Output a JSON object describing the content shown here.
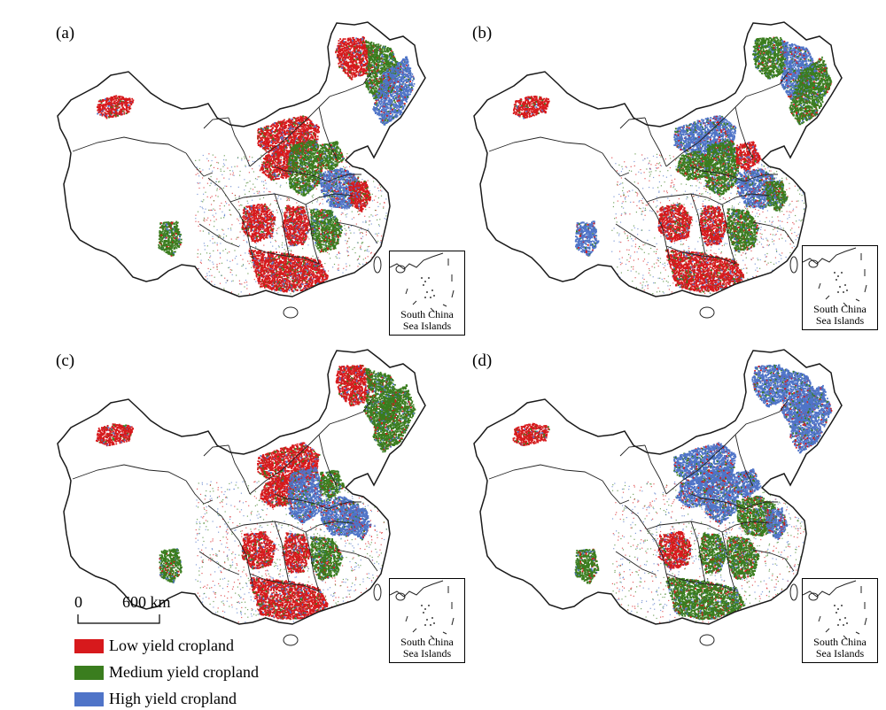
{
  "panels": [
    {
      "label": "(a)",
      "scheme": [
        "#d7191c",
        "#3a7d1e",
        "#4f74c8",
        "#d7191c",
        "#d7191c",
        "#3a7d1e",
        "#3a7d1e",
        "#4f74c8",
        "#d7191c",
        "#d7191c",
        "#3a7d1e",
        "#d7191c",
        "#d7191c",
        "#3a7d1e",
        "#d7191c"
      ]
    },
    {
      "label": "(b)",
      "scheme": [
        "#3a7d1e",
        "#4f74c8",
        "#3a7d1e",
        "#4f74c8",
        "#3a7d1e",
        "#3a7d1e",
        "#d7191c",
        "#4f74c8",
        "#3a7d1e",
        "#d7191c",
        "#3a7d1e",
        "#d7191c",
        "#d7191c",
        "#4f74c8",
        "#d7191c"
      ]
    },
    {
      "label": "(c)",
      "scheme": [
        "#d7191c",
        "#3a7d1e",
        "#3a7d1e",
        "#d7191c",
        "#d7191c",
        "#4f74c8",
        "#3a7d1e",
        "#4f74c8",
        "#4f74c8",
        "#d7191c",
        "#3a7d1e",
        "#d7191c",
        "#d7191c",
        "#3a7d1e",
        "#d7191c"
      ]
    },
    {
      "label": "(d)",
      "scheme": [
        "#4f74c8",
        "#4f74c8",
        "#4f74c8",
        "#4f74c8",
        "#4f74c8",
        "#4f74c8",
        "#4f74c8",
        "#3a7d1e",
        "#4f74c8",
        "#3a7d1e",
        "#3a7d1e",
        "#d7191c",
        "#3a7d1e",
        "#3a7d1e",
        "#d7191c"
      ]
    }
  ],
  "inset": {
    "line1": "South China",
    "line2": "Sea Islands"
  },
  "scale_bar": {
    "zero": "0",
    "distance": "600 km"
  },
  "legend": [
    {
      "label": "Low yield cropland",
      "color": "#d7191c"
    },
    {
      "label": "Medium yield cropland",
      "color": "#3a7d1e"
    },
    {
      "label": "High yield cropland",
      "color": "#4f74c8"
    }
  ]
}
